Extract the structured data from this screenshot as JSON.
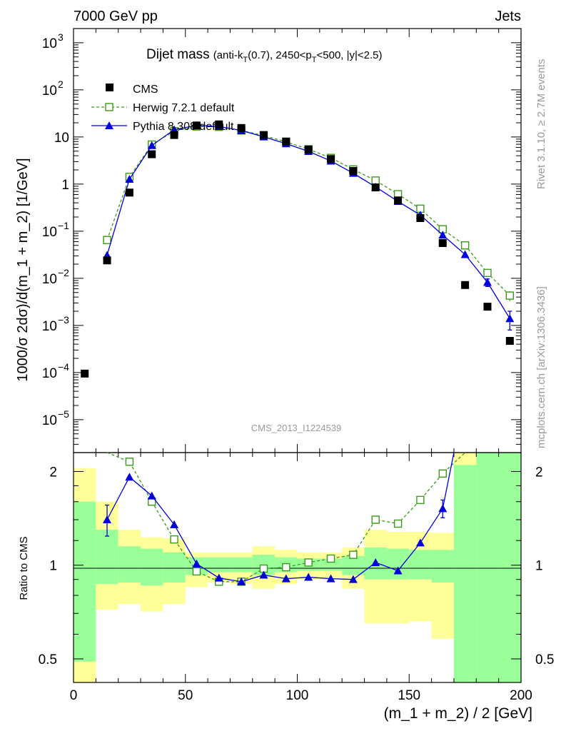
{
  "header": {
    "left": "7000 GeV pp",
    "right": "Jets"
  },
  "side_labels": {
    "rivet": "Rivet 3.1.10, ≥ 2.7M events",
    "mcplots": "mcplots.cern.ch [arXiv:1306.3436]"
  },
  "chart_data": {
    "type": "scatter",
    "title": "Dijet mass",
    "title_cut": {
      "p1": "(anti-k",
      "s1": "T",
      "p2": "(0.7), 2450<p",
      "s2": "T",
      "p3": "<500, |y|<2.5)"
    },
    "watermark": "CMS_2013_I1224539",
    "xlabel": "(m_1 + m_2) / 2 [GeV]",
    "ylabel": "1000/σ 2dσ)/d(m_1 + m_2) [1/GeV]",
    "ratio_ylabel": "Ratio to CMS",
    "xlim": [
      0,
      200
    ],
    "ylim": [
      2e-06,
      2000
    ],
    "y_scale": "log",
    "ratio_ylim": [
      0.42,
      2.3
    ],
    "ratio_y_scale": "log",
    "x_ticks": [
      0,
      50,
      100,
      150,
      200
    ],
    "y_ticks": [
      {
        "v": 1e-05,
        "b": "10",
        "e": "−5"
      },
      {
        "v": 0.0001,
        "b": "10",
        "e": "−4"
      },
      {
        "v": 0.001,
        "b": "10",
        "e": "−3"
      },
      {
        "v": 0.01,
        "b": "10",
        "e": "−2"
      },
      {
        "v": 0.1,
        "b": "10",
        "e": "−1"
      },
      {
        "v": 1,
        "b": "1",
        "e": ""
      },
      {
        "v": 10,
        "b": "10",
        "e": ""
      },
      {
        "v": 100,
        "b": "10",
        "e": "2"
      },
      {
        "v": 1000,
        "b": "10",
        "e": "3"
      }
    ],
    "ratio_ticks": [
      {
        "v": 0.5,
        "label": "0.5"
      },
      {
        "v": 1,
        "label": "1"
      },
      {
        "v": 2,
        "label": "2"
      }
    ],
    "legend_position": "top-left",
    "colors": {
      "cms": "#000000",
      "herwig": "#3a9a1a",
      "pythia": "#0000dd",
      "band_inner": "#99ff99",
      "band_outer": "#ffff99"
    },
    "series": [
      {
        "name": "CMS",
        "x": [
          5,
          15,
          25,
          35,
          45,
          55,
          65,
          75,
          85,
          95,
          105,
          115,
          125,
          135,
          145,
          155,
          165,
          175,
          185,
          195
        ],
        "values": [
          9.5e-05,
          0.024,
          0.66,
          4.3,
          11.0,
          17.5,
          18.5,
          15.5,
          11.0,
          8.0,
          5.4,
          3.4,
          1.9,
          0.85,
          0.45,
          0.19,
          0.056,
          0.0072,
          0.0025,
          0.00047
        ]
      },
      {
        "name": "Herwig 7.2.1 default",
        "x": [
          15,
          25,
          35,
          45,
          55,
          65,
          75,
          85,
          95,
          105,
          115,
          125,
          135,
          145,
          155,
          165,
          175,
          185,
          195
        ],
        "values": [
          0.065,
          1.42,
          6.9,
          13.3,
          16.7,
          16.4,
          13.7,
          10.7,
          7.9,
          5.5,
          3.6,
          2.05,
          1.19,
          0.61,
          0.3,
          0.11,
          0.05,
          0.013,
          0.0043
        ],
        "err": [
          0,
          0,
          0,
          0,
          0,
          0,
          0,
          0,
          0,
          0,
          0,
          0,
          0,
          0,
          0,
          0,
          0,
          0.002,
          0.001
        ]
      },
      {
        "name": "Pythia 8.308 default",
        "x": [
          15,
          25,
          35,
          45,
          55,
          65,
          75,
          85,
          95,
          105,
          115,
          125,
          135,
          145,
          155,
          165,
          175,
          185,
          195
        ],
        "values": [
          0.031,
          1.27,
          6.6,
          14.3,
          17.6,
          16.8,
          13.7,
          10.1,
          7.2,
          4.95,
          3.1,
          1.7,
          0.87,
          0.43,
          0.22,
          0.083,
          0.032,
          0.0082,
          0.0014
        ],
        "err": [
          0,
          0,
          0,
          0,
          0,
          0,
          0,
          0,
          0,
          0,
          0,
          0,
          0,
          0,
          0,
          0,
          0,
          0.0015,
          0.0006
        ]
      }
    ],
    "ratio_series": [
      {
        "name": "Herwig 7.2.1 default",
        "x": [
          15,
          25,
          35,
          45,
          55,
          65,
          75,
          85,
          95,
          105,
          115,
          125,
          135,
          145,
          155,
          165,
          175
        ],
        "values": [
          2.7,
          2.15,
          1.6,
          1.21,
          0.955,
          0.885,
          0.885,
          0.975,
          0.985,
          1.02,
          1.05,
          1.08,
          1.4,
          1.36,
          1.62,
          1.97,
          3.0
        ]
      },
      {
        "name": "Pythia 8.308 default",
        "x": [
          15,
          25,
          35,
          45,
          55,
          65,
          75,
          85,
          95,
          105,
          115,
          125,
          135,
          145,
          155,
          165,
          170
        ],
        "values": [
          1.4,
          1.92,
          1.67,
          1.35,
          1.01,
          0.91,
          0.885,
          0.93,
          0.905,
          0.915,
          0.905,
          0.9,
          1.02,
          0.96,
          1.18,
          1.52,
          2.5
        ],
        "err": [
          0.16,
          0,
          0,
          0,
          0,
          0,
          0,
          0,
          0,
          0,
          0,
          0,
          0,
          0,
          0,
          0.1,
          0
        ]
      }
    ],
    "ratio_bands": {
      "edges": [
        0,
        10,
        20,
        30,
        40,
        50,
        60,
        70,
        80,
        90,
        100,
        110,
        120,
        130,
        140,
        150,
        160,
        170,
        180,
        190,
        200
      ],
      "inner_lo": [
        0.49,
        0.87,
        0.88,
        0.86,
        0.88,
        0.93,
        0.95,
        0.95,
        0.93,
        0.95,
        0.96,
        0.96,
        0.93,
        0.9,
        0.9,
        0.9,
        0.88,
        0.42,
        0.42,
        0.42
      ],
      "inner_hi": [
        1.6,
        1.3,
        1.15,
        1.13,
        1.1,
        1.06,
        1.06,
        1.06,
        1.08,
        1.06,
        1.05,
        1.05,
        1.07,
        1.14,
        1.13,
        1.12,
        1.12,
        2.1,
        2.3,
        2.3
      ],
      "outer_lo": [
        0.42,
        0.72,
        0.75,
        0.71,
        0.75,
        0.85,
        0.88,
        0.87,
        0.84,
        0.87,
        0.9,
        0.9,
        0.84,
        0.65,
        0.65,
        0.66,
        0.58,
        0.42,
        0.42,
        0.42
      ],
      "outer_hi": [
        2.05,
        1.6,
        1.3,
        1.23,
        1.22,
        1.1,
        1.1,
        1.1,
        1.15,
        1.12,
        1.1,
        1.1,
        1.14,
        1.3,
        1.28,
        1.28,
        1.27,
        2.3,
        2.3,
        2.3
      ]
    }
  }
}
